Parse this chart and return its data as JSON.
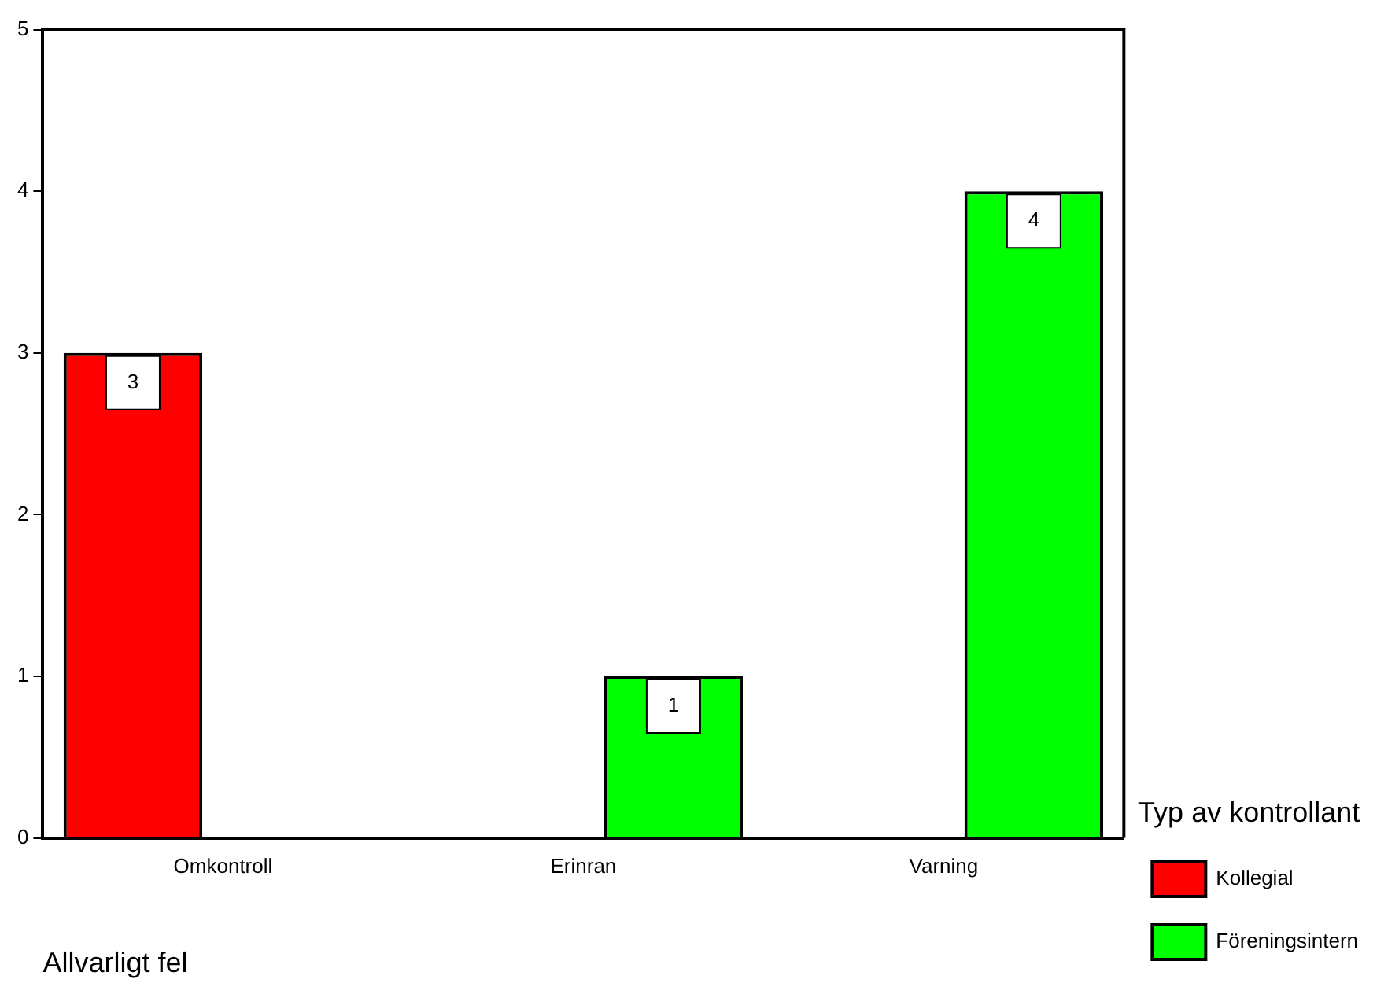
{
  "chart_data": {
    "type": "bar",
    "categories": [
      "Omkontroll",
      "Erinran",
      "Varning"
    ],
    "series": [
      {
        "name": "Kollegial",
        "color": "#ff0000",
        "values": [
          3,
          null,
          null
        ]
      },
      {
        "name": "Föreningsintern",
        "color": "#00ff00",
        "values": [
          null,
          1,
          4
        ]
      }
    ],
    "xlabel": "Allvarligt fel",
    "legend_title": "Typ av kontrollant",
    "legend": "right",
    "ylim": [
      0,
      5
    ],
    "yticks": [
      0,
      1,
      2,
      3,
      4,
      5
    ],
    "grid": false,
    "data_labels": true
  }
}
